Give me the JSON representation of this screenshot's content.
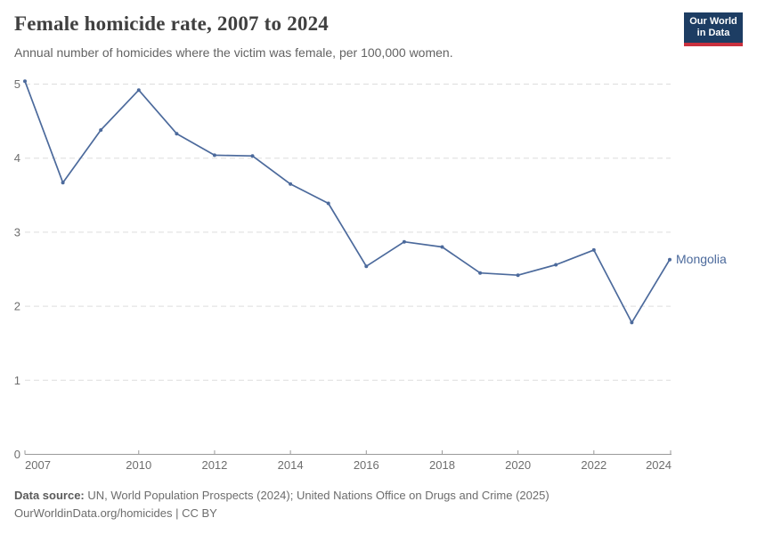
{
  "header": {
    "title": "Female homicide rate, 2007 to 2024",
    "subtitle": "Annual number of homicides where the victim was female, per 100,000 women.",
    "logo": {
      "line1": "Our World",
      "line2": "in Data"
    }
  },
  "footer": {
    "datasource_label": "Data source:",
    "datasource_text": " UN, World Population Prospects (2024); United Nations Office on Drugs and Crime (2025)",
    "license": "OurWorldinData.org/homicides | CC BY"
  },
  "colors": {
    "line": "#4c6a9c",
    "series_label": "#4c6a9c",
    "grid": "#dddddd",
    "axis": "#9a9a9a",
    "tick_label": "#6e6e6e",
    "logo_navy": "#1d3d63",
    "logo_red": "#c9303e"
  },
  "chart_data": {
    "type": "line",
    "title": "Female homicide rate, 2007 to 2024",
    "subtitle": "Annual number of homicides where the victim was female, per 100,000 women.",
    "xlabel": "",
    "ylabel": "",
    "x": [
      2007,
      2008,
      2009,
      2010,
      2011,
      2012,
      2013,
      2014,
      2015,
      2016,
      2017,
      2018,
      2019,
      2020,
      2021,
      2022,
      2023,
      2024
    ],
    "series": [
      {
        "name": "Mongolia",
        "color": "#4c6a9c",
        "values": [
          5.04,
          3.67,
          4.38,
          4.92,
          4.33,
          4.04,
          4.03,
          3.65,
          3.39,
          2.54,
          2.87,
          2.8,
          2.45,
          2.42,
          2.56,
          2.76,
          1.78,
          2.63
        ]
      }
    ],
    "xticks": [
      2007,
      2010,
      2012,
      2014,
      2016,
      2018,
      2020,
      2022,
      2024
    ],
    "yticks": [
      0,
      1,
      2,
      3,
      4,
      5
    ],
    "xlim": [
      2007,
      2024
    ],
    "ylim": [
      0,
      5.1
    ],
    "grid": "horizontal-dashed",
    "legend": "end-of-line-label"
  }
}
